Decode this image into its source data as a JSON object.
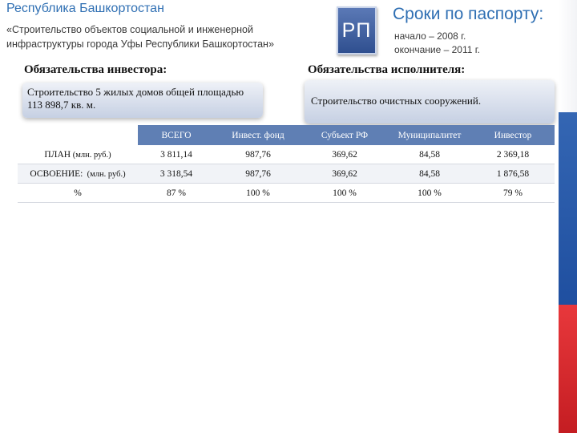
{
  "header": {
    "region": "Республика Башкортостан",
    "subtitle": "«Строительство объектов социальной и инженерной инфраструктуры города Уфы Республики Башкортостан»"
  },
  "badge": {
    "text": "РП"
  },
  "deadlines": {
    "title": "Сроки по паспорту:",
    "start": "начало – 2008 г.",
    "end": "окончание – 2011 г."
  },
  "investor": {
    "heading": "Обязательства инвестора:",
    "text": "Строительство 5 жилых домов общей площадью 113 898,7 кв. м."
  },
  "executor": {
    "heading": "Обязательства исполнителя:",
    "text": "Строительство очистных сооружений."
  },
  "table": {
    "columns": [
      "ВСЕГО",
      "Инвест. фонд",
      "Субъект РФ",
      "Муниципалитет",
      "Инвестор"
    ],
    "rows": [
      {
        "label": "ПЛАН",
        "unit": " (млн. руб.)",
        "values": [
          "3 811,14",
          "987,76",
          "369,62",
          "84,58",
          "2 369,18"
        ]
      },
      {
        "label": "ОСВОЕНИЕ:",
        "unit": "  (млн. руб.)",
        "values": [
          "3 318,54",
          "987,76",
          "369,62",
          "84,58",
          "1 876,58"
        ]
      },
      {
        "label": "%",
        "unit": "",
        "values": [
          "87 %",
          "100 %",
          "100 %",
          "100 %",
          "79 %"
        ]
      }
    ]
  },
  "colors": {
    "accent_blue": "#2f6fb3",
    "header_fill": "#5f7fb4",
    "strip_colors": [
      "#ffffff",
      "#1f4fa0",
      "#e3262b"
    ]
  }
}
